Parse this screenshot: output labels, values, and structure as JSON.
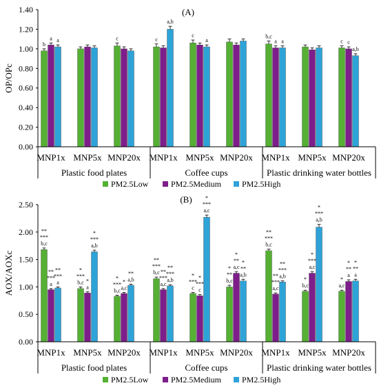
{
  "colors": {
    "low": "#55B034",
    "medium": "#7E1E8B",
    "high": "#2EA3D8"
  },
  "groups": [
    "Plastic food plates",
    "Coffee cups",
    "Plastic drinking water bottles"
  ],
  "subgroups": [
    "MNP1x",
    "MNP5x",
    "MNP20x"
  ],
  "legend": [
    "PM2.5Low",
    "PM2.5Medium",
    "PM2.5High"
  ],
  "chart_data": [
    {
      "type": "bar",
      "panel": "(A)",
      "ylabel": "OP/OPc",
      "ylim": [
        0,
        1.4
      ],
      "yticks": [
        "0.00",
        "0.20",
        "0.40",
        "0.60",
        "0.80",
        "1.00",
        "1.20",
        "1.40"
      ],
      "categories": [
        "MNP1x",
        "MNP5x",
        "MNP20x",
        "MNP1x",
        "MNP5x",
        "MNP20x",
        "MNP1x",
        "MNP5x",
        "MNP20x"
      ],
      "series": [
        {
          "name": "PM2.5Low",
          "values": [
            0.98,
            1.0,
            1.03,
            1.02,
            1.06,
            1.07,
            1.05,
            1.02,
            1.01
          ],
          "errors": [
            0.02,
            0.02,
            0.03,
            0.03,
            0.03,
            0.03,
            0.03,
            0.02,
            0.02
          ]
        },
        {
          "name": "PM2.5Medium",
          "values": [
            1.04,
            1.02,
            1.0,
            1.01,
            1.04,
            1.04,
            1.01,
            0.99,
            1.0
          ],
          "errors": [
            0.02,
            0.02,
            0.02,
            0.02,
            0.02,
            0.02,
            0.02,
            0.02,
            0.02
          ]
        },
        {
          "name": "PM2.5High",
          "values": [
            1.02,
            1.01,
            0.98,
            1.2,
            1.02,
            1.08,
            1.01,
            1.01,
            0.93
          ],
          "errors": [
            0.02,
            0.02,
            0.02,
            0.03,
            0.02,
            0.02,
            0.02,
            0.02,
            0.02
          ]
        }
      ],
      "annotations": [
        [
          "b",
          "a",
          "a"
        ],
        [
          "",
          "",
          ""
        ],
        [
          "c",
          "",
          ""
        ],
        [
          "c",
          "",
          "a,b"
        ],
        [
          "c",
          "",
          "a"
        ],
        [
          "",
          "",
          ""
        ],
        [
          "b,c",
          "a",
          "a"
        ],
        [
          "",
          "",
          ""
        ],
        [
          "c",
          "c",
          "a,b"
        ]
      ]
    },
    {
      "type": "bar",
      "panel": "(B)",
      "ylabel": "AOX/AOXc",
      "ylim": [
        0,
        2.5
      ],
      "yticks": [
        "0.00",
        "0.50",
        "1.00",
        "1.50",
        "2.00",
        "2.50"
      ],
      "categories": [
        "MNP1x",
        "MNP5x",
        "MNP20x",
        "MNP1x",
        "MNP5x",
        "MNP20x",
        "MNP1x",
        "MNP5x",
        "MNP20x"
      ],
      "series": [
        {
          "name": "PM2.5Low",
          "values": [
            1.68,
            0.97,
            0.83,
            1.15,
            0.88,
            1.0,
            1.66,
            0.92,
            0.92
          ],
          "errors": [
            0.03,
            0.03,
            0.02,
            0.03,
            0.02,
            0.03,
            0.03,
            0.02,
            0.02
          ]
        },
        {
          "name": "PM2.5Medium",
          "values": [
            0.95,
            0.89,
            0.88,
            0.95,
            0.84,
            1.25,
            0.87,
            1.25,
            1.1
          ],
          "errors": [
            0.02,
            0.02,
            0.02,
            0.02,
            0.02,
            0.03,
            0.02,
            0.03,
            0.03
          ]
        },
        {
          "name": "PM2.5High",
          "values": [
            0.98,
            1.64,
            1.03,
            1.02,
            2.27,
            1.11,
            1.09,
            2.09,
            1.11
          ],
          "errors": [
            0.02,
            0.03,
            0.02,
            0.02,
            0.04,
            0.03,
            0.02,
            0.05,
            0.03
          ]
        }
      ],
      "annotations": [
        [
          "**\n***\nb,c",
          "**\n***\na",
          "**\n***\na"
        ],
        [
          "*\n***\nb,c",
          "*\na",
          "*\n***\na,b"
        ],
        [
          "*\n***\nb,c",
          "*\na,c",
          "**\na,b"
        ],
        [
          "**\n***\nb,c",
          "**\n***\na,c",
          "**\n***\na,b"
        ],
        [
          "*\n***\nc",
          "*\n***\nc",
          "*\n***\na,c"
        ],
        [
          "*\n**\nb,c",
          "*\n**\na,c",
          "*\n**\na,b"
        ],
        [
          "**\n***\nb,c",
          "**\n***\na,c",
          "**\n***\na,b"
        ],
        [
          "*\nb,c",
          "*\n***\na,c",
          "*\n***\na,b"
        ],
        [
          "*\na,c",
          "*\n**\na",
          "*\n**\na"
        ]
      ]
    }
  ]
}
